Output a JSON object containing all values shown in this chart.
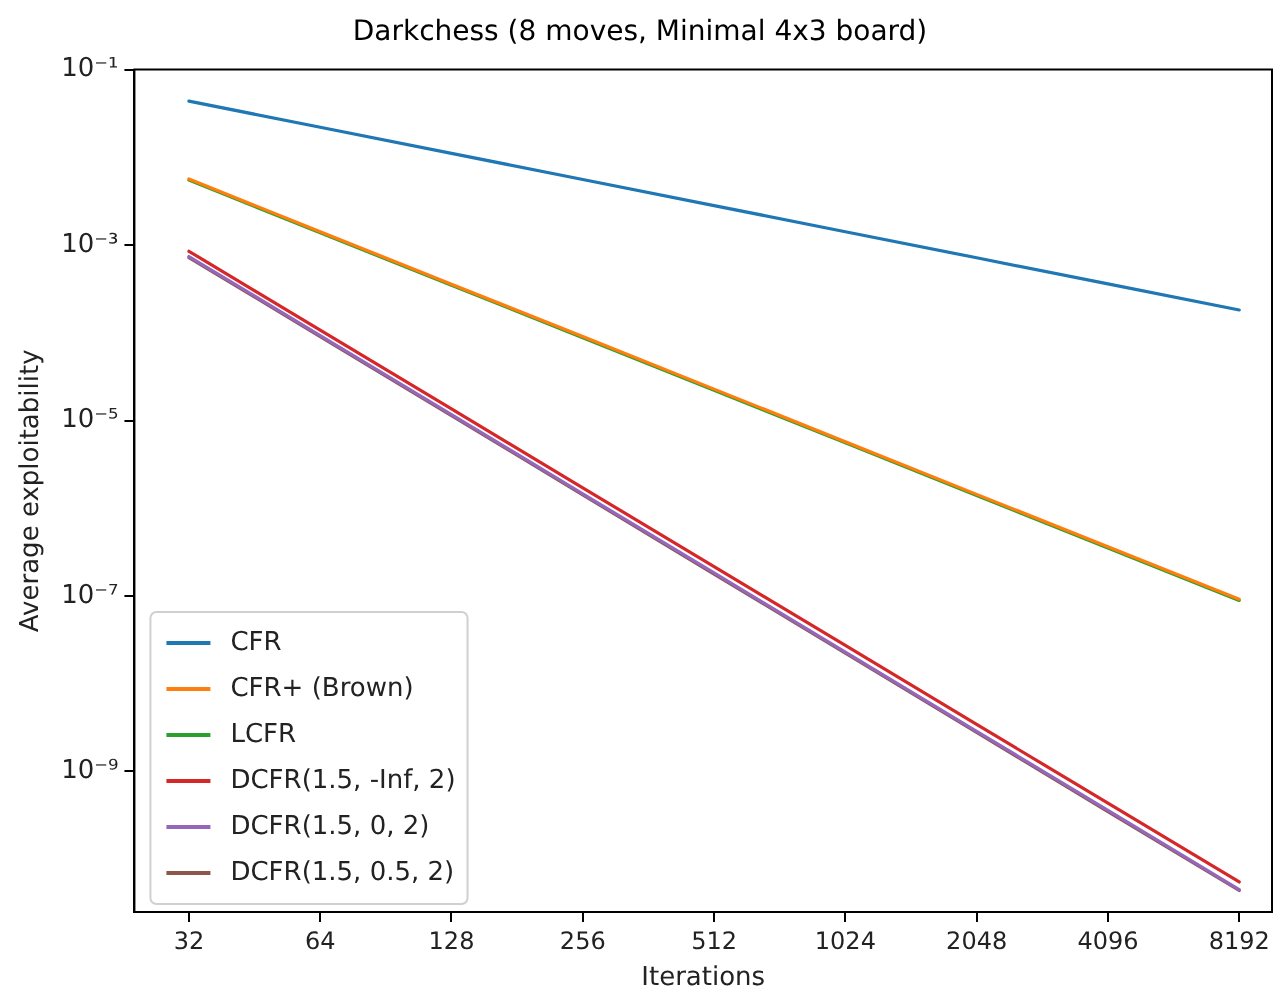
{
  "chart_data": {
    "type": "line",
    "title": "Darkchess (8 moves, Minimal 4x3 board)",
    "xlabel": "Iterations",
    "ylabel": "Average exploitability",
    "log": "xy",
    "grid": false,
    "legend": "bottom left",
    "marker": "none",
    "line_style": "solid",
    "x": [
      32,
      64,
      128,
      256,
      512,
      1024,
      2048,
      4096,
      8192
    ],
    "xlim": [
      24,
      9740
    ],
    "xticks": [
      32,
      64,
      128,
      256,
      512,
      1024,
      2048,
      4096,
      8192
    ],
    "ylim": [
      2.5e-11,
      0.1
    ],
    "yticks": [
      {
        "value": 0.1,
        "label": "10⁻¹"
      },
      {
        "value": 0.001,
        "label": "10⁻³"
      },
      {
        "value": 1e-05,
        "label": "10⁻⁵"
      },
      {
        "value": 1e-07,
        "label": "10⁻⁷"
      },
      {
        "value": 1e-09,
        "label": "10⁻⁹"
      }
    ],
    "series": [
      {
        "name": "CFR",
        "color": "#1f77b4",
        "values": [
          0.0437,
          0.022,
          0.0111,
          0.00559,
          0.00282,
          0.00142,
          0.000716,
          0.000361,
          0.000182
        ]
      },
      {
        "name": "CFR+ (Brown)",
        "color": "#ff7f0e",
        "values": [
          0.00567,
          0.00142,
          0.000358,
          9.05e-05,
          2.28e-05,
          5.74e-06,
          1.44e-06,
          3.64e-07,
          9.2e-08
        ]
      },
      {
        "name": "LCFR",
        "color": "#2ca02c",
        "values": [
          0.0055,
          0.00138,
          0.000348,
          8.79e-05,
          2.21e-05,
          5.57e-06,
          1.4e-06,
          3.53e-07,
          8.9e-08
        ]
      },
      {
        "name": "DCFR(1.5, -Inf, 2)",
        "color": "#d62728",
        "values": [
          0.00085,
          0.000107,
          1.36e-05,
          1.71e-06,
          2.16e-07,
          2.73e-08,
          3.44e-09,
          4.35e-10,
          5.5e-11
        ]
      },
      {
        "name": "DCFR(1.5, 0, 2)",
        "color": "#9467bd",
        "values": [
          0.00074,
          9.3e-05,
          1.17e-05,
          1.46e-06,
          1.83e-07,
          2.29e-08,
          2.87e-09,
          3.59e-10,
          4.5e-11
        ]
      },
      {
        "name": "DCFR(1.5, 0.5, 2)",
        "color": "#8c564b",
        "values": [
          0.00072,
          9.07e-05,
          1.14e-05,
          1.42e-06,
          1.78e-07,
          2.23e-08,
          2.79e-09,
          3.49e-10,
          4.4e-11
        ]
      }
    ]
  }
}
